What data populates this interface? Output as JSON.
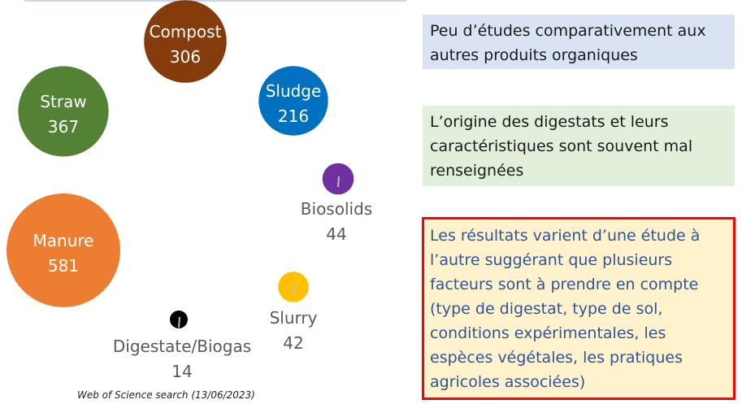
{
  "chart_data": {
    "type": "bubble",
    "title": "",
    "source": "Web of Science search (13/06/2023)",
    "points": [
      {
        "name": "Compost",
        "value": 306,
        "color": "#843c0c"
      },
      {
        "name": "Straw",
        "value": 367,
        "color": "#548235"
      },
      {
        "name": "Sludge",
        "value": 216,
        "color": "#0070c0"
      },
      {
        "name": "Biosolids",
        "value": 44,
        "color": "#7030a0"
      },
      {
        "name": "Manure",
        "value": 581,
        "color": "#ed7d31"
      },
      {
        "name": "Slurry",
        "value": 42,
        "color": "#ffc000"
      },
      {
        "name": "Digestate/Biogas",
        "value": 14,
        "color": "#000000"
      }
    ]
  },
  "notes": [
    {
      "lines": [
        "Peu d’études comparativement aux",
        "autres produits organiques"
      ]
    },
    {
      "lines": [
        "L’origine des digestats et leurs",
        "caractéristiques sont souvent mal",
        "renseignées"
      ]
    },
    {
      "lines": [
        "Les résultats varient d’une étude à",
        "l’autre suggérant que plusieurs",
        "facteurs sont à prendre en compte",
        "(type de digestat, type de sol,",
        "conditions expérimentales, les",
        "espèces végétales, les pratiques",
        "agricoles associées)"
      ]
    }
  ]
}
